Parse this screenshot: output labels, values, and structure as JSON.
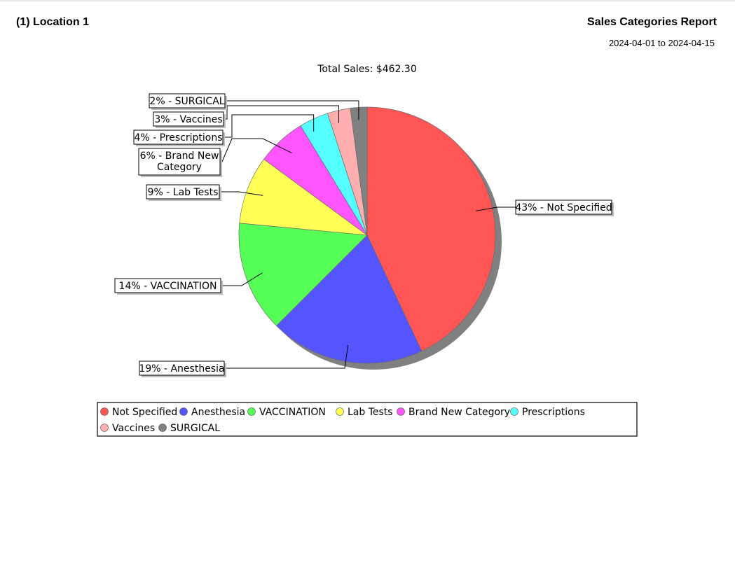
{
  "header": {
    "location": "(1) Location 1",
    "report_title": "Sales Categories Report",
    "date_range": "2024-04-01 to 2024-04-15"
  },
  "chart_data": {
    "type": "pie",
    "title": "Total Sales: $462.30",
    "slices": [
      {
        "name": "Not Specified",
        "label": "43% - Not Specified",
        "percent": 43.0,
        "color": "#FF5555"
      },
      {
        "name": "Anesthesia",
        "label": "19% - Anesthesia",
        "percent": 19.5,
        "color": "#5555FF"
      },
      {
        "name": "VACCINATION",
        "label": "14% - VACCINATION",
        "percent": 14.0,
        "color": "#55FF55"
      },
      {
        "name": "Lab Tests",
        "label": "9% - Lab Tests",
        "percent": 8.6,
        "color": "#FFFF55"
      },
      {
        "name": "Brand New Category",
        "label": "6% - Brand New Category",
        "label_lines": [
          "6% - Brand New",
          "Category"
        ],
        "percent": 6.2,
        "color": "#FF55FF"
      },
      {
        "name": "Prescriptions",
        "label": "4% - Prescriptions",
        "percent": 3.7,
        "color": "#55FFFF"
      },
      {
        "name": "Vaccines",
        "label": "3% - Vaccines",
        "percent": 2.9,
        "color": "#FFAFAF"
      },
      {
        "name": "SURGICAL",
        "label": "2% - SURGICAL",
        "percent": 2.1,
        "color": "#808080"
      }
    ],
    "legend": {
      "placement": "bottom",
      "entries": [
        "Not Specified",
        "Anesthesia",
        "VACCINATION",
        "Lab Tests",
        "Brand New Category",
        "Prescriptions",
        "Vaccines",
        "SURGICAL"
      ]
    }
  }
}
